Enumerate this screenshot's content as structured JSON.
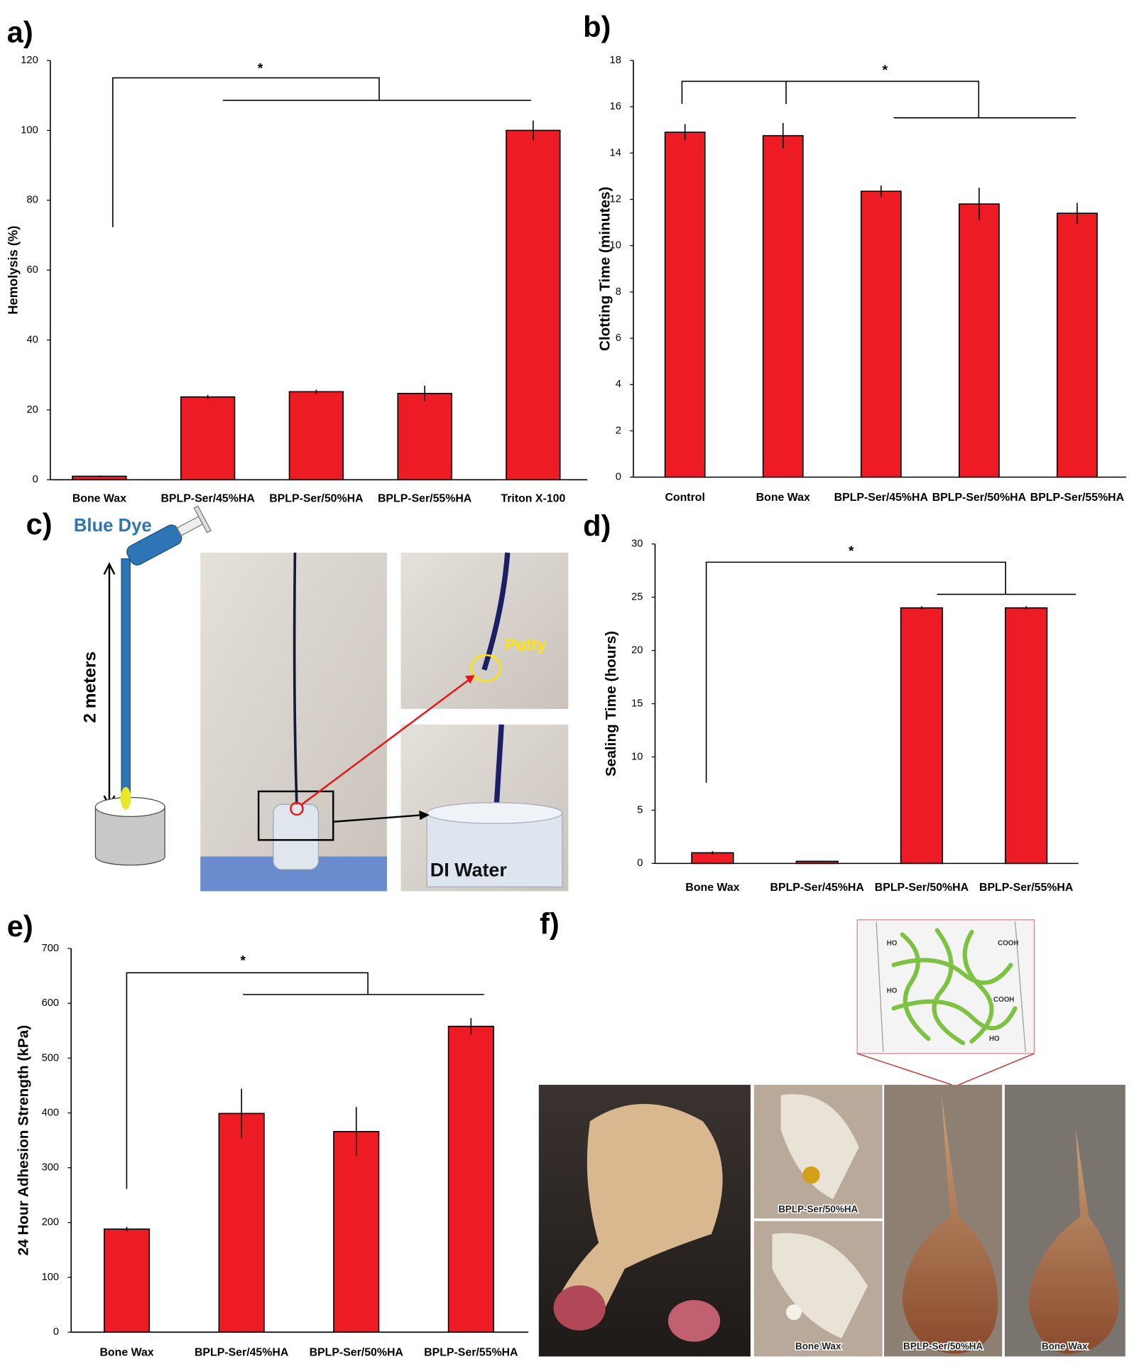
{
  "chart_data": [
    {
      "type": "bar",
      "panel_label": "a)",
      "y_label": "Hemolysis (%)",
      "annotation": "*",
      "color": "#ed1c24",
      "categories": [
        "Bone Wax",
        "BPLP-Ser/45%HA",
        "BPLP-Ser/50%HA",
        "BPLP-Ser/55%HA",
        "Triton X-100"
      ],
      "values": [
        1,
        23.7,
        25.2,
        24.7,
        100
      ],
      "errors": [
        0.2,
        0.6,
        0.6,
        2.2,
        2.8
      ],
      "ylim": [
        0,
        120
      ],
      "yticks": [
        0,
        20,
        40,
        60,
        80,
        100,
        120
      ]
    },
    {
      "type": "bar",
      "panel_label": "b)",
      "y_label": "Clotting Time (minutes)",
      "annotation": "*",
      "color": "#ed1c24",
      "categories": [
        "Control",
        "Bone Wax",
        "BPLP-Ser/45%HA",
        "BPLP-Ser/50%HA",
        "BPLP-Ser/55%HA"
      ],
      "values": [
        14.9,
        14.75,
        12.35,
        11.8,
        11.4
      ],
      "errors": [
        0.35,
        0.55,
        0.25,
        0.7,
        0.45
      ],
      "ylim": [
        0,
        18
      ],
      "yticks": [
        0,
        2,
        4,
        6,
        8,
        10,
        12,
        14,
        16,
        18
      ]
    },
    {
      "type": "bar",
      "panel_label": "d)",
      "y_label": "Sealing Time (hours)",
      "annotation": "*",
      "color": "#ed1c24",
      "categories": [
        "Bone Wax",
        "BPLP-Ser/45%HA",
        "BPLP-Ser/50%HA",
        "BPLP-Ser/55%HA"
      ],
      "values": [
        1,
        0.2,
        24,
        24
      ],
      "errors": [
        0.15,
        0.05,
        0.15,
        0.15
      ],
      "ylim": [
        0,
        30
      ],
      "yticks": [
        0,
        5,
        10,
        15,
        20,
        25,
        30
      ]
    },
    {
      "type": "bar",
      "panel_label": "e)",
      "y_label": "24 Hour Adhesion Strength (kPa)",
      "annotation": "*",
      "color": "#ed1c24",
      "categories": [
        "Bone Wax",
        "BPLP-Ser/45%HA",
        "BPLP-Ser/50%HA",
        "BPLP-Ser/55%HA"
      ],
      "values": [
        188,
        399,
        366,
        558
      ],
      "errors": [
        4,
        45,
        45,
        15
      ],
      "ylim": [
        0,
        700
      ],
      "yticks": [
        0,
        100,
        200,
        300,
        400,
        500,
        600,
        700
      ]
    }
  ],
  "panel_c": {
    "panel_label": "c)",
    "dye_label": "Blue Dye",
    "height_label": "2 meters",
    "putty_label": "Putty",
    "water_label": "DI Water"
  },
  "panel_f": {
    "panel_label": "f)",
    "schematic_labels": [
      "HO",
      "COOH",
      "HO",
      "COOH",
      "HO"
    ],
    "photo_labels": [
      "BPLP-Ser/50%HA",
      "Bone Wax",
      "BPLP-Ser/50%HA",
      "Bone Wax"
    ]
  }
}
